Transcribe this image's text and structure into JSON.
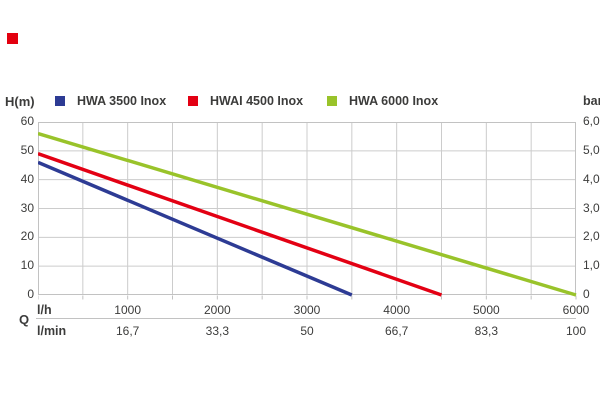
{
  "brand": {
    "logo_color": "#e3000f"
  },
  "chart_data": {
    "type": "line",
    "legend_position": "top",
    "grid": true,
    "x_axis": {
      "symbol": "Q",
      "label_lh": "l/h",
      "label_lmin": "l/min",
      "range_lh": [
        0,
        6000
      ],
      "gridline_step_lh": 500,
      "tick_step_lh": 1000,
      "ticks_lh": [
        "1000",
        "2000",
        "3000",
        "4000",
        "5000",
        "6000"
      ],
      "ticks_lmin": [
        "16,7",
        "33,3",
        "50",
        "66,7",
        "83,3",
        "100"
      ]
    },
    "y_axis_left": {
      "label": "H(m)",
      "range": [
        0,
        60
      ],
      "step": 10,
      "ticks": [
        "60",
        "50",
        "40",
        "30",
        "20",
        "10",
        "0"
      ]
    },
    "y_axis_right": {
      "label": "bar",
      "range": [
        0,
        6
      ],
      "step": 1,
      "ticks": [
        "6,0",
        "5,0",
        "4,0",
        "3,0",
        "2,0",
        "1,0",
        "0"
      ]
    },
    "series": [
      {
        "name": "HWA 3500 Inox",
        "color": "#2d3b94",
        "points": [
          [
            0,
            46
          ],
          [
            3500,
            0
          ]
        ]
      },
      {
        "name": "HWAI 4500 Inox",
        "color": "#e30013",
        "points": [
          [
            0,
            49
          ],
          [
            4500,
            0
          ]
        ]
      },
      {
        "name": "HWA 6000 Inox",
        "color": "#99c32a",
        "points": [
          [
            0,
            56
          ],
          [
            6000,
            0
          ]
        ]
      }
    ],
    "colors": {
      "grid": "#cccccc",
      "border": "#c2c2c2",
      "text": "#3c3c3b"
    }
  }
}
